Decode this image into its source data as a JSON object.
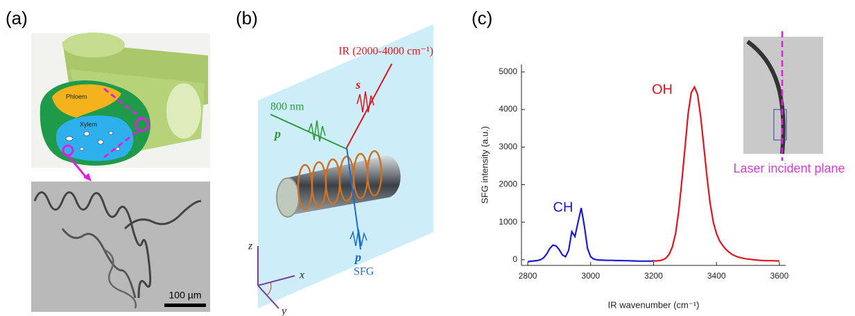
{
  "panel_labels": [
    "(a)",
    "(b)",
    "(c)"
  ],
  "panel_a": {
    "phloem": "Phloem",
    "xylem": "Xylem",
    "scale_bar": "100 µm"
  },
  "panel_b": {
    "ir": "IR (2000-4000 cm⁻¹)",
    "visible": "800 nm",
    "s_pol": "s",
    "p_in": "p",
    "p_out": "p",
    "sfg": "SFG",
    "axis_z": "z",
    "axis_x": "x",
    "axis_y": "y"
  },
  "inset_label": "Laser incident plane",
  "chart_data": {
    "type": "line",
    "xlabel": "IR wavenumber (cm⁻¹)",
    "ylabel": "SFG intensity (a.u.)",
    "xlim": [
      2780,
      3620
    ],
    "ylim": [
      -150,
      5200
    ],
    "xticks": [
      2800,
      3000,
      3200,
      3400,
      3600
    ],
    "yticks": [
      0,
      1000,
      2000,
      3000,
      4000,
      5000
    ],
    "x": [
      2800,
      2810,
      2820,
      2830,
      2840,
      2850,
      2860,
      2870,
      2880,
      2890,
      2900,
      2910,
      2920,
      2930,
      2940,
      2950,
      2960,
      2970,
      2980,
      2990,
      3000,
      3010,
      3020,
      3030,
      3040,
      3050,
      3060,
      3070,
      3080,
      3090,
      3100,
      3110,
      3120,
      3130,
      3140,
      3150,
      3160,
      3170,
      3180,
      3190,
      3200,
      3210,
      3220,
      3230,
      3240,
      3250,
      3260,
      3270,
      3280,
      3290,
      3300,
      3310,
      3320,
      3330,
      3340,
      3350,
      3360,
      3370,
      3380,
      3390,
      3400,
      3410,
      3420,
      3430,
      3440,
      3450,
      3460,
      3470,
      3480,
      3490,
      3500,
      3510,
      3520,
      3530,
      3540,
      3550,
      3560,
      3570,
      3580,
      3590,
      3600
    ],
    "series": [
      {
        "name": "CH",
        "color": "#1a1ad6",
        "values": [
          -50,
          -40,
          -30,
          -20,
          0,
          50,
          150,
          300,
          390,
          370,
          270,
          130,
          80,
          250,
          750,
          620,
          1000,
          1380,
          900,
          300,
          80,
          20,
          0,
          -10,
          -10,
          -15,
          -15,
          -15,
          -20,
          -20,
          -20,
          -25,
          -25,
          -30,
          -30,
          -35,
          -35,
          -35,
          -35,
          -35,
          -30,
          null,
          null,
          null,
          null,
          null,
          null,
          null,
          null,
          null,
          null,
          null,
          null,
          null,
          null,
          null,
          null,
          null,
          null,
          null,
          null,
          null,
          null,
          null,
          null,
          null,
          null,
          null,
          null,
          null,
          null,
          null,
          null,
          null,
          null,
          null,
          null,
          null,
          null,
          null,
          null
        ]
      },
      {
        "name": "OH",
        "color": "#e0141e",
        "values": [
          null,
          null,
          null,
          null,
          null,
          null,
          null,
          null,
          null,
          null,
          null,
          null,
          null,
          null,
          null,
          null,
          null,
          null,
          null,
          null,
          null,
          null,
          null,
          null,
          null,
          null,
          null,
          null,
          null,
          null,
          null,
          null,
          null,
          null,
          null,
          null,
          null,
          null,
          null,
          null,
          -30,
          -30,
          -20,
          0,
          50,
          150,
          350,
          700,
          1300,
          2100,
          3000,
          3900,
          4450,
          4600,
          4400,
          3800,
          3000,
          2200,
          1500,
          1000,
          700,
          500,
          380,
          280,
          200,
          140,
          100,
          70,
          50,
          30,
          20,
          10,
          0,
          -10,
          -15,
          -20,
          -25,
          -25,
          -25,
          -30,
          -30
        ]
      }
    ]
  }
}
